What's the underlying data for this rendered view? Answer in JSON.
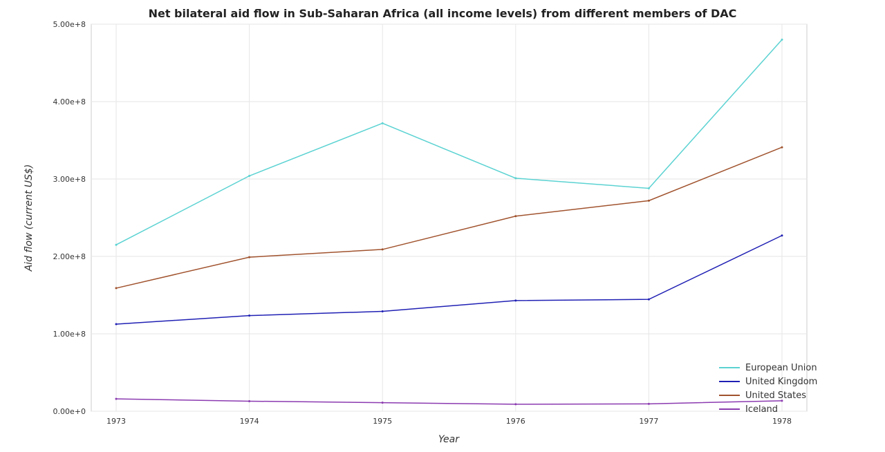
{
  "chart_data": {
    "type": "line",
    "title": "Net bilateral aid flow in Sub-Saharan Africa (all income levels) from different members of DAC",
    "xlabel": "Year",
    "ylabel": "Aid flow (current US$)",
    "categories": [
      "1973",
      "1974",
      "1975",
      "1976",
      "1977",
      "1978"
    ],
    "ylim": [
      0,
      500000000
    ],
    "yticks": [
      0,
      100000000,
      200000000,
      300000000,
      400000000,
      500000000
    ],
    "ytick_labels": [
      "0.00e+0",
      "1.00e+8",
      "2.00e+8",
      "3.00e+8",
      "4.00e+8",
      "5.00e+8"
    ],
    "grid": true,
    "legend_position": "bottom-right",
    "series": [
      {
        "name": "European Union",
        "color": "#5bd2d2",
        "values": [
          215000000,
          304000000,
          372000000,
          301000000,
          288000000,
          480000000
        ]
      },
      {
        "name": "United Kingdom",
        "color": "#1f1fb4",
        "values": [
          112500000,
          123500000,
          129000000,
          143000000,
          144500000,
          227000000
        ]
      },
      {
        "name": "United States",
        "color": "#a0522d",
        "values": [
          159000000,
          199000000,
          209000000,
          252000000,
          272000000,
          341000000
        ]
      },
      {
        "name": "Iceland",
        "color": "#8b3ab0",
        "values": [
          16000000,
          13000000,
          11000000,
          9000000,
          9500000,
          13500000
        ]
      }
    ]
  }
}
